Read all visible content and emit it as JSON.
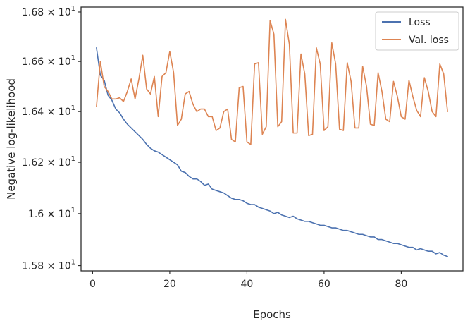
{
  "chart_data": {
    "type": "line",
    "xlabel": "Epochs",
    "ylabel": "Negative log-likelihood",
    "xlim": [
      -3,
      96
    ],
    "ylim": [
      15.78,
      16.82
    ],
    "yscale": "log",
    "x_ticks": [
      0,
      20,
      40,
      60,
      80
    ],
    "y_ticks": [
      {
        "value": 15.8,
        "mantissa": "1.58",
        "base": "10",
        "exp": "1"
      },
      {
        "value": 16.0,
        "mantissa": "1.6",
        "base": "10",
        "exp": "1"
      },
      {
        "value": 16.2,
        "mantissa": "1.62",
        "base": "10",
        "exp": "1"
      },
      {
        "value": 16.4,
        "mantissa": "1.64",
        "base": "10",
        "exp": "1"
      },
      {
        "value": 16.6,
        "mantissa": "1.66",
        "base": "10",
        "exp": "1"
      },
      {
        "value": 16.8,
        "mantissa": "1.68",
        "base": "10",
        "exp": "1"
      }
    ],
    "grid": false,
    "legend_position": "top-right",
    "series": [
      {
        "name": "Loss",
        "color": "#4c72b0",
        "x": [
          1,
          2,
          3,
          4,
          5,
          6,
          7,
          8,
          9,
          10,
          11,
          12,
          13,
          14,
          15,
          16,
          17,
          18,
          19,
          20,
          21,
          22,
          23,
          24,
          25,
          26,
          27,
          28,
          29,
          30,
          31,
          32,
          33,
          34,
          35,
          36,
          37,
          38,
          39,
          40,
          41,
          42,
          43,
          44,
          45,
          46,
          47,
          48,
          49,
          50,
          51,
          52,
          53,
          54,
          55,
          56,
          57,
          58,
          59,
          60,
          61,
          62,
          63,
          64,
          65,
          66,
          67,
          68,
          69,
          70,
          71,
          72,
          73,
          74,
          75,
          76,
          77,
          78,
          79,
          80,
          81,
          82,
          83,
          84,
          85,
          86,
          87,
          88,
          89,
          90,
          91,
          92
        ],
        "values": [
          16.655,
          16.545,
          16.525,
          16.465,
          16.445,
          16.41,
          16.395,
          16.37,
          16.35,
          16.335,
          16.32,
          16.305,
          16.29,
          16.27,
          16.255,
          16.245,
          16.24,
          16.23,
          16.22,
          16.21,
          16.2,
          16.19,
          16.165,
          16.16,
          16.145,
          16.135,
          16.135,
          16.125,
          16.11,
          16.115,
          16.095,
          16.09,
          16.085,
          16.08,
          16.07,
          16.06,
          16.055,
          16.055,
          16.05,
          16.04,
          16.035,
          16.035,
          16.025,
          16.02,
          16.015,
          16.01,
          16.0,
          16.005,
          15.995,
          15.99,
          15.985,
          15.99,
          15.98,
          15.975,
          15.97,
          15.97,
          15.965,
          15.96,
          15.955,
          15.955,
          15.95,
          15.945,
          15.945,
          15.94,
          15.935,
          15.935,
          15.93,
          15.925,
          15.92,
          15.92,
          15.915,
          15.91,
          15.91,
          15.9,
          15.9,
          15.895,
          15.89,
          15.885,
          15.885,
          15.88,
          15.875,
          15.87,
          15.87,
          15.86,
          15.865,
          15.86,
          15.855,
          15.855,
          15.845,
          15.85,
          15.84,
          15.835
        ]
      },
      {
        "name": "Val. loss",
        "color": "#dd8452",
        "x": [
          1,
          2,
          3,
          4,
          5,
          6,
          7,
          8,
          9,
          10,
          11,
          12,
          13,
          14,
          15,
          16,
          17,
          18,
          19,
          20,
          21,
          22,
          23,
          24,
          25,
          26,
          27,
          28,
          29,
          30,
          31,
          32,
          33,
          34,
          35,
          36,
          37,
          38,
          39,
          40,
          41,
          42,
          43,
          44,
          45,
          46,
          47,
          48,
          49,
          50,
          51,
          52,
          53,
          54,
          55,
          56,
          57,
          58,
          59,
          60,
          61,
          62,
          63,
          64,
          65,
          66,
          67,
          68,
          69,
          70,
          71,
          72,
          73,
          74,
          75,
          76,
          77,
          78,
          79,
          80,
          81,
          82,
          83,
          84,
          85,
          86,
          87,
          88,
          89,
          90,
          91,
          92
        ],
        "values": [
          16.42,
          16.6,
          16.5,
          16.48,
          16.45,
          16.45,
          16.455,
          16.44,
          16.48,
          16.53,
          16.45,
          16.53,
          16.625,
          16.49,
          16.47,
          16.54,
          16.38,
          16.54,
          16.555,
          16.64,
          16.555,
          16.345,
          16.37,
          16.47,
          16.48,
          16.43,
          16.4,
          16.41,
          16.41,
          16.38,
          16.38,
          16.325,
          16.335,
          16.4,
          16.41,
          16.29,
          16.28,
          16.495,
          16.5,
          16.28,
          16.27,
          16.59,
          16.595,
          16.31,
          16.34,
          16.765,
          16.71,
          16.34,
          16.36,
          16.77,
          16.67,
          16.315,
          16.315,
          16.63,
          16.55,
          16.305,
          16.31,
          16.655,
          16.59,
          16.325,
          16.34,
          16.675,
          16.59,
          16.33,
          16.325,
          16.595,
          16.52,
          16.335,
          16.335,
          16.58,
          16.5,
          16.35,
          16.345,
          16.555,
          16.48,
          16.37,
          16.36,
          16.52,
          16.46,
          16.38,
          16.37,
          16.525,
          16.46,
          16.405,
          16.38,
          16.535,
          16.48,
          16.4,
          16.38,
          16.59,
          16.55,
          16.4
        ]
      }
    ]
  }
}
